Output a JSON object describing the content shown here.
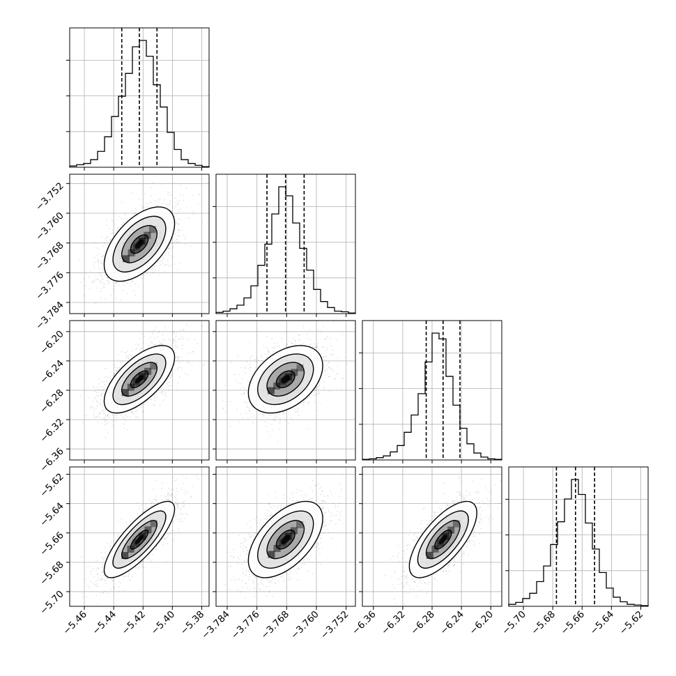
{
  "chart_data": {
    "type": "corner",
    "title": "",
    "parameters": [
      {
        "index": 0,
        "axis_range": [
          -5.47,
          -5.375
        ],
        "ticks": [
          -5.46,
          -5.44,
          -5.42,
          -5.4,
          -5.38
        ],
        "tick_labels": [
          "−5.46",
          "−5.44",
          "−5.42",
          "−5.40",
          "−5.38"
        ],
        "quantiles": [
          -5.4345,
          -5.4225,
          -5.4105
        ],
        "median": -5.4225,
        "sigma": 0.012
      },
      {
        "index": 1,
        "axis_range": [
          -3.787,
          -3.7495
        ],
        "ticks": [
          -3.784,
          -3.776,
          -3.768,
          -3.76,
          -3.752
        ],
        "tick_labels": [
          "−3.784",
          "−3.776",
          "−3.768",
          "−3.760",
          "−3.752"
        ],
        "quantiles": [
          -3.7733,
          -3.7683,
          -3.7633
        ],
        "median": -3.7683,
        "sigma": 0.005
      },
      {
        "index": 2,
        "axis_range": [
          -6.375,
          -6.185
        ],
        "ticks": [
          -6.36,
          -6.32,
          -6.28,
          -6.24,
          -6.2
        ],
        "tick_labels": [
          "−6.36",
          "−6.32",
          "−6.28",
          "−6.24",
          "−6.20"
        ],
        "quantiles": [
          -6.288,
          -6.265,
          -6.242
        ],
        "median": -6.265,
        "sigma": 0.023
      },
      {
        "index": 3,
        "axis_range": [
          -5.71,
          -5.615
        ],
        "ticks": [
          -5.7,
          -5.68,
          -5.66,
          -5.64,
          -5.62
        ],
        "tick_labels": [
          "−5.70",
          "−5.68",
          "−5.66",
          "−5.64",
          "−5.62"
        ],
        "quantiles": [
          -5.6775,
          -5.6645,
          -5.6515
        ],
        "median": -5.6645,
        "sigma": 0.013
      }
    ],
    "histograms": [
      {
        "param": 0,
        "bins": 20,
        "counts": [
          2,
          4,
          6,
          12,
          25,
          48,
          80,
          112,
          148,
          190,
          200,
          175,
          130,
          95,
          55,
          28,
          12,
          6,
          3,
          1
        ]
      },
      {
        "param": 1,
        "bins": 20,
        "counts": [
          2,
          4,
          8,
          14,
          26,
          46,
          80,
          115,
          165,
          210,
          195,
          150,
          108,
          72,
          40,
          20,
          10,
          4,
          3,
          1
        ]
      },
      {
        "param": 2,
        "bins": 20,
        "counts": [
          1,
          2,
          4,
          7,
          14,
          25,
          48,
          78,
          115,
          170,
          220,
          210,
          145,
          95,
          55,
          28,
          12,
          5,
          2,
          1
        ]
      },
      {
        "param": 3,
        "bins": 20,
        "counts": [
          3,
          6,
          12,
          20,
          38,
          62,
          95,
          130,
          165,
          195,
          172,
          128,
          88,
          52,
          28,
          14,
          7,
          3,
          2,
          1
        ]
      }
    ],
    "pairs": [
      {
        "x_param": 0,
        "y_param": 1,
        "correlation": 0.55
      },
      {
        "x_param": 0,
        "y_param": 2,
        "correlation": 0.65
      },
      {
        "x_param": 1,
        "y_param": 2,
        "correlation": 0.4
      },
      {
        "x_param": 0,
        "y_param": 3,
        "correlation": 0.8
      },
      {
        "x_param": 1,
        "y_param": 3,
        "correlation": 0.55
      },
      {
        "x_param": 2,
        "y_param": 3,
        "correlation": 0.7
      }
    ],
    "contour_levels_sigma": [
      0.5,
      1.0,
      1.5,
      2.0
    ],
    "grid": true,
    "colors": {
      "line": "#000000",
      "grid": "#b0b0b0",
      "points": "#000000",
      "density": "#000000"
    }
  }
}
